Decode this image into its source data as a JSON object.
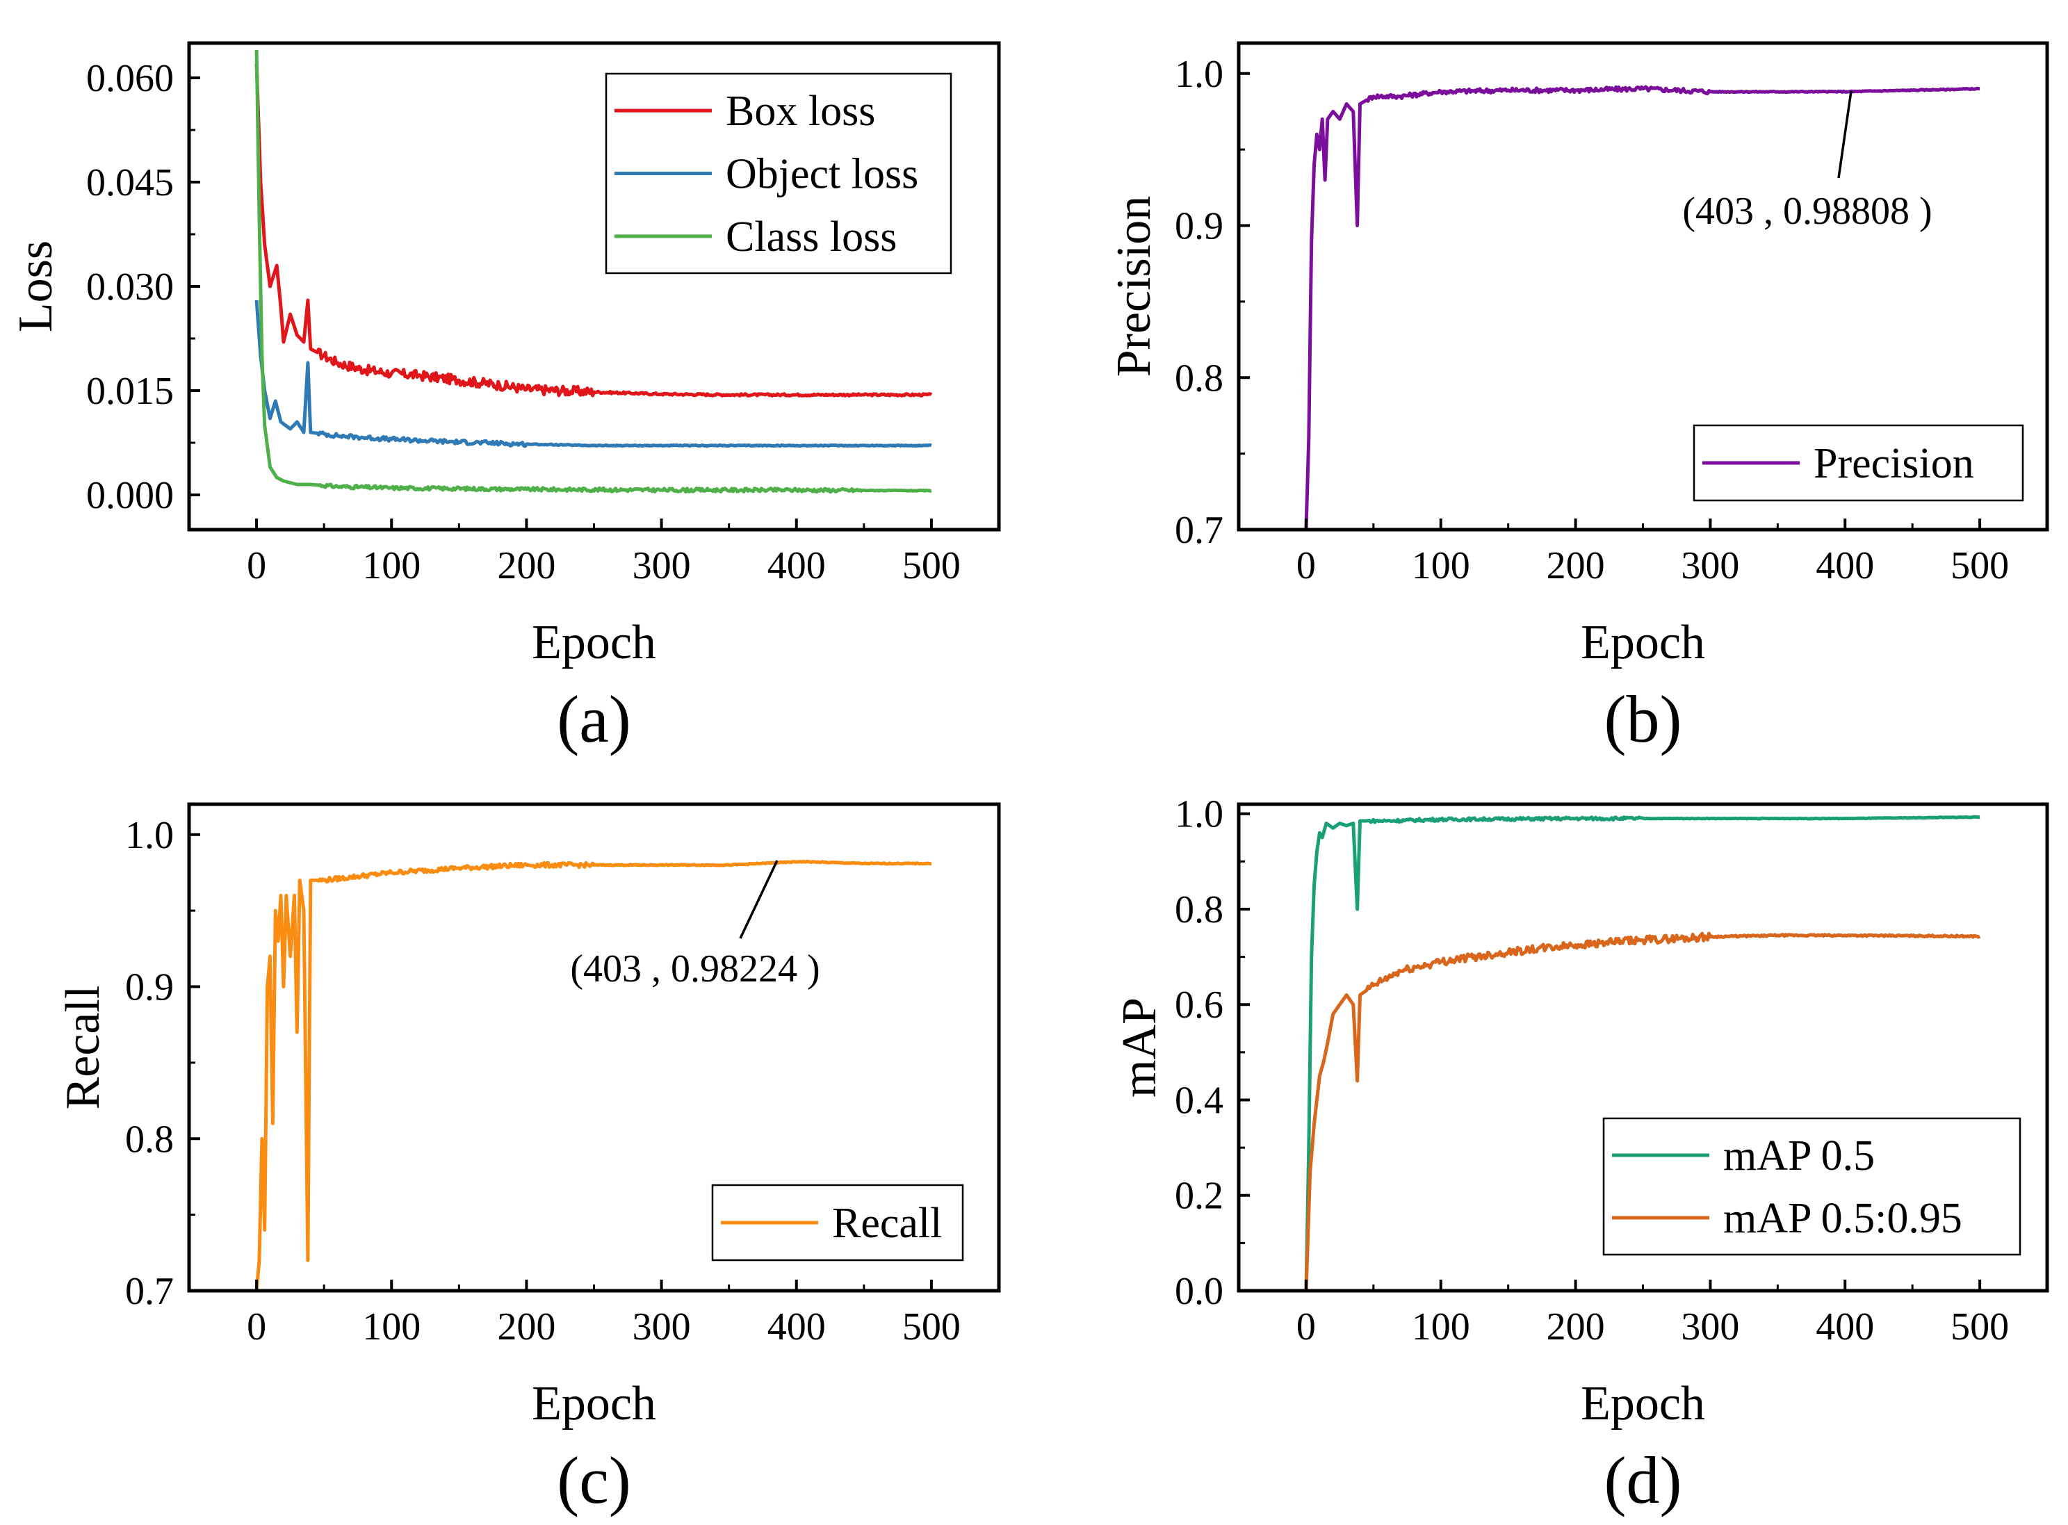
{
  "colors": {
    "box_loss": "#e0161b",
    "object_loss": "#2f79b5",
    "class_loss": "#4fb04a",
    "precision": "#7b0f9b",
    "recall": "#fb8c12",
    "map50": "#1a9f77",
    "map5095": "#d8661c",
    "axis": "#000000"
  },
  "chart_data": [
    {
      "id": "a",
      "type": "line",
      "caption": "(a)",
      "xlabel": "Epoch",
      "ylabel": "Loss",
      "xlim": [
        -50,
        550
      ],
      "ylim": [
        -0.005,
        0.065
      ],
      "xticks": [
        0,
        100,
        200,
        300,
        400,
        500
      ],
      "xtick_labels": [
        "0",
        "100",
        "200",
        "300",
        "400",
        "500"
      ],
      "yticks": [
        0,
        0.015,
        0.03,
        0.045,
        0.06
      ],
      "ytick_labels": [
        "0.000",
        "0.015",
        "0.030",
        "0.045",
        "0.060"
      ],
      "legend_position": "top-right",
      "series": [
        {
          "name": "Box loss",
          "color_key": "box_loss",
          "points": [
            [
              0,
              0.062
            ],
            [
              3,
              0.045
            ],
            [
              6,
              0.036
            ],
            [
              10,
              0.03
            ],
            [
              15,
              0.033
            ],
            [
              18,
              0.027
            ],
            [
              20,
              0.022
            ],
            [
              25,
              0.026
            ],
            [
              30,
              0.023
            ],
            [
              35,
              0.022
            ],
            [
              38,
              0.028
            ],
            [
              40,
              0.021
            ],
            [
              50,
              0.02
            ],
            [
              60,
              0.019
            ],
            [
              80,
              0.018
            ],
            [
              100,
              0.0175
            ],
            [
              120,
              0.0172
            ],
            [
              150,
              0.0165
            ],
            [
              180,
              0.0158
            ],
            [
              200,
              0.0152
            ],
            [
              250,
              0.0148
            ],
            [
              300,
              0.0145
            ],
            [
              350,
              0.0144
            ],
            [
              400,
              0.0144
            ],
            [
              450,
              0.0144
            ],
            [
              500,
              0.0144
            ]
          ],
          "noise": 0.0007,
          "noise_until": 250
        },
        {
          "name": "Object loss",
          "color_key": "object_loss",
          "points": [
            [
              0,
              0.028
            ],
            [
              3,
              0.02
            ],
            [
              6,
              0.015
            ],
            [
              10,
              0.011
            ],
            [
              14,
              0.0135
            ],
            [
              18,
              0.0105
            ],
            [
              25,
              0.0095
            ],
            [
              30,
              0.0105
            ],
            [
              35,
              0.009
            ],
            [
              38,
              0.019
            ],
            [
              40,
              0.009
            ],
            [
              60,
              0.0085
            ],
            [
              100,
              0.008
            ],
            [
              150,
              0.0076
            ],
            [
              200,
              0.0073
            ],
            [
              250,
              0.0071
            ],
            [
              300,
              0.0071
            ],
            [
              400,
              0.0071
            ],
            [
              500,
              0.0071
            ]
          ],
          "noise": 0.0003,
          "noise_until": 200
        },
        {
          "name": "Class loss",
          "color_key": "class_loss",
          "points": [
            [
              0,
              0.064
            ],
            [
              2,
              0.04
            ],
            [
              4,
              0.02
            ],
            [
              6,
              0.01
            ],
            [
              10,
              0.004
            ],
            [
              15,
              0.0025
            ],
            [
              20,
              0.002
            ],
            [
              30,
              0.0015
            ],
            [
              40,
              0.0015
            ],
            [
              60,
              0.0012
            ],
            [
              100,
              0.001
            ],
            [
              200,
              0.0008
            ],
            [
              300,
              0.0007
            ],
            [
              400,
              0.0007
            ],
            [
              500,
              0.0006
            ]
          ],
          "noise": 0.00025,
          "noise_until": 450
        }
      ]
    },
    {
      "id": "b",
      "type": "line",
      "caption": "(b)",
      "xlabel": "Epoch",
      "ylabel": "Precision",
      "xlim": [
        -50,
        550
      ],
      "ylim": [
        0.7,
        1.02
      ],
      "xticks": [
        0,
        100,
        200,
        300,
        400,
        500
      ],
      "xtick_labels": [
        "0",
        "100",
        "200",
        "300",
        "400",
        "500"
      ],
      "yticks": [
        0.7,
        0.8,
        0.9,
        1.0
      ],
      "ytick_labels": [
        "0.7",
        "0.8",
        "0.9",
        "1.0"
      ],
      "legend_position": "bottom-right",
      "annotation": {
        "text": "(403 , 0.98808 )",
        "x": 403,
        "y": 0.98808
      },
      "series": [
        {
          "name": "Precision",
          "color_key": "precision",
          "points": [
            [
              0,
              0.7
            ],
            [
              2,
              0.76
            ],
            [
              4,
              0.89
            ],
            [
              6,
              0.94
            ],
            [
              8,
              0.96
            ],
            [
              10,
              0.95
            ],
            [
              12,
              0.97
            ],
            [
              14,
              0.93
            ],
            [
              16,
              0.97
            ],
            [
              20,
              0.975
            ],
            [
              25,
              0.97
            ],
            [
              30,
              0.98
            ],
            [
              35,
              0.975
            ],
            [
              38,
              0.9
            ],
            [
              40,
              0.98
            ],
            [
              50,
              0.985
            ],
            [
              70,
              0.985
            ],
            [
              100,
              0.988
            ],
            [
              150,
              0.989
            ],
            [
              200,
              0.989
            ],
            [
              250,
              0.99
            ],
            [
              300,
              0.988
            ],
            [
              350,
              0.988
            ],
            [
              403,
              0.98808
            ],
            [
              450,
              0.989
            ],
            [
              500,
              0.99
            ]
          ],
          "noise": 0.0015,
          "noise_until": 300
        }
      ]
    },
    {
      "id": "c",
      "type": "line",
      "caption": "(c)",
      "xlabel": "Epoch",
      "ylabel": "Recall",
      "xlim": [
        -50,
        550
      ],
      "ylim": [
        0.7,
        1.02
      ],
      "xticks": [
        0,
        100,
        200,
        300,
        400,
        500
      ],
      "xtick_labels": [
        "0",
        "100",
        "200",
        "300",
        "400",
        "500"
      ],
      "yticks": [
        0.7,
        0.8,
        0.9,
        1.0
      ],
      "ytick_labels": [
        "0.7",
        "0.8",
        "0.9",
        "1.0"
      ],
      "legend_position": "bottom-right",
      "annotation": {
        "text": "(403 , 0.98224 )",
        "x": 403,
        "y": 0.98224
      },
      "series": [
        {
          "name": "Recall",
          "color_key": "recall",
          "points": [
            [
              0,
              0.7
            ],
            [
              2,
              0.72
            ],
            [
              4,
              0.8
            ],
            [
              6,
              0.74
            ],
            [
              8,
              0.9
            ],
            [
              10,
              0.92
            ],
            [
              12,
              0.81
            ],
            [
              14,
              0.95
            ],
            [
              16,
              0.93
            ],
            [
              18,
              0.96
            ],
            [
              20,
              0.9
            ],
            [
              22,
              0.96
            ],
            [
              25,
              0.92
            ],
            [
              28,
              0.96
            ],
            [
              30,
              0.87
            ],
            [
              32,
              0.97
            ],
            [
              35,
              0.95
            ],
            [
              38,
              0.72
            ],
            [
              40,
              0.97
            ],
            [
              50,
              0.97
            ],
            [
              70,
              0.972
            ],
            [
              100,
              0.975
            ],
            [
              150,
              0.978
            ],
            [
              200,
              0.98
            ],
            [
              250,
              0.98
            ],
            [
              300,
              0.98
            ],
            [
              350,
              0.98
            ],
            [
              403,
              0.98224
            ],
            [
              450,
              0.981
            ],
            [
              500,
              0.981
            ]
          ],
          "noise": 0.0015,
          "noise_until": 250
        }
      ]
    },
    {
      "id": "d",
      "type": "line",
      "caption": "(d)",
      "xlabel": "Epoch",
      "ylabel": "mAP",
      "xlim": [
        -50,
        550
      ],
      "ylim": [
        0,
        1.02
      ],
      "xticks": [
        0,
        100,
        200,
        300,
        400,
        500
      ],
      "xtick_labels": [
        "0",
        "100",
        "200",
        "300",
        "400",
        "500"
      ],
      "yticks": [
        0,
        0.2,
        0.4,
        0.6,
        0.8,
        1.0
      ],
      "ytick_labels": [
        "0.0",
        "0.2",
        "0.4",
        "0.6",
        "0.8",
        "1.0"
      ],
      "legend_position": "bottom-right",
      "series": [
        {
          "name": "mAP 0.5",
          "color_key": "map50",
          "points": [
            [
              0,
              0.0
            ],
            [
              2,
              0.3
            ],
            [
              4,
              0.7
            ],
            [
              6,
              0.85
            ],
            [
              8,
              0.92
            ],
            [
              10,
              0.96
            ],
            [
              12,
              0.95
            ],
            [
              15,
              0.98
            ],
            [
              20,
              0.97
            ],
            [
              25,
              0.98
            ],
            [
              30,
              0.975
            ],
            [
              35,
              0.98
            ],
            [
              38,
              0.8
            ],
            [
              40,
              0.985
            ],
            [
              60,
              0.985
            ],
            [
              100,
              0.988
            ],
            [
              200,
              0.99
            ],
            [
              300,
              0.99
            ],
            [
              400,
              0.99
            ],
            [
              500,
              0.993
            ]
          ],
          "noise": 0.003,
          "noise_until": 250
        },
        {
          "name": "mAP 0.5:0.95",
          "color_key": "map5095",
          "points": [
            [
              0,
              0.0
            ],
            [
              3,
              0.25
            ],
            [
              6,
              0.35
            ],
            [
              8,
              0.4
            ],
            [
              10,
              0.45
            ],
            [
              13,
              0.48
            ],
            [
              16,
              0.52
            ],
            [
              20,
              0.58
            ],
            [
              25,
              0.6
            ],
            [
              30,
              0.62
            ],
            [
              35,
              0.6
            ],
            [
              38,
              0.44
            ],
            [
              40,
              0.62
            ],
            [
              50,
              0.64
            ],
            [
              70,
              0.67
            ],
            [
              100,
              0.69
            ],
            [
              150,
              0.71
            ],
            [
              200,
              0.725
            ],
            [
              250,
              0.735
            ],
            [
              300,
              0.742
            ],
            [
              350,
              0.745
            ],
            [
              400,
              0.745
            ],
            [
              450,
              0.744
            ],
            [
              500,
              0.743
            ]
          ],
          "noise": 0.008,
          "noise_until": 300
        }
      ]
    }
  ]
}
